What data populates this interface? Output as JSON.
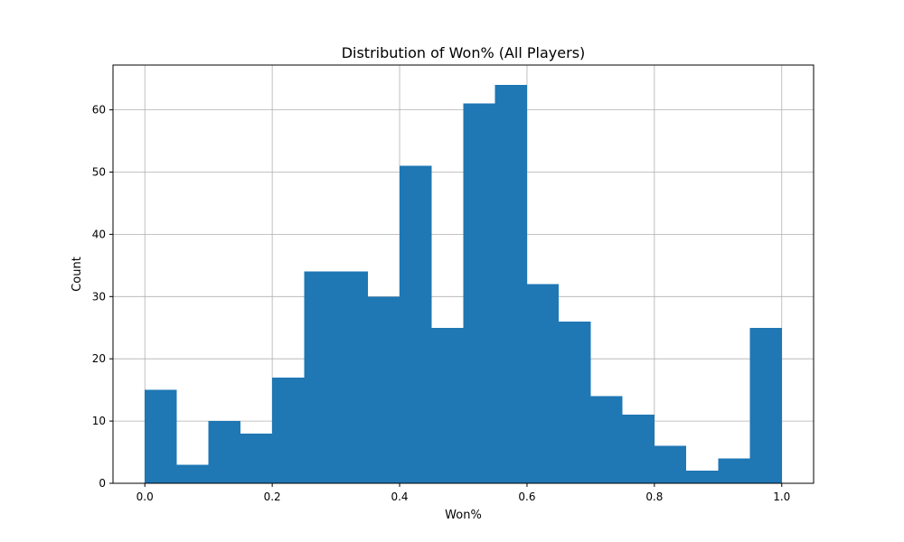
{
  "chart_data": {
    "type": "bar",
    "subtype": "histogram",
    "title": "Distribution of Won% (All Players)",
    "xlabel": "Won%",
    "ylabel": "Count",
    "bin_edges": [
      0.0,
      0.05,
      0.1,
      0.15,
      0.2,
      0.25,
      0.3,
      0.35,
      0.4,
      0.45,
      0.5,
      0.55,
      0.6,
      0.65,
      0.7,
      0.75,
      0.8,
      0.85,
      0.9,
      0.95,
      1.0
    ],
    "values": [
      15,
      3,
      10,
      8,
      17,
      34,
      34,
      30,
      51,
      25,
      61,
      64,
      32,
      26,
      14,
      11,
      6,
      2,
      4,
      25
    ],
    "xlim": [
      -0.05,
      1.05
    ],
    "ylim": [
      0,
      67.2
    ],
    "xticks": [
      0.0,
      0.2,
      0.4,
      0.6,
      0.8,
      1.0
    ],
    "xtick_labels": [
      "0.0",
      "0.2",
      "0.4",
      "0.6",
      "0.8",
      "1.0"
    ],
    "yticks": [
      0,
      10,
      20,
      30,
      40,
      50,
      60
    ],
    "ytick_labels": [
      "0",
      "10",
      "20",
      "30",
      "40",
      "50",
      "60"
    ],
    "grid": true,
    "legend": "none",
    "colors": {
      "bar": "#1f77b4",
      "grid": "#b0b0b0",
      "axis": "#000000"
    }
  }
}
